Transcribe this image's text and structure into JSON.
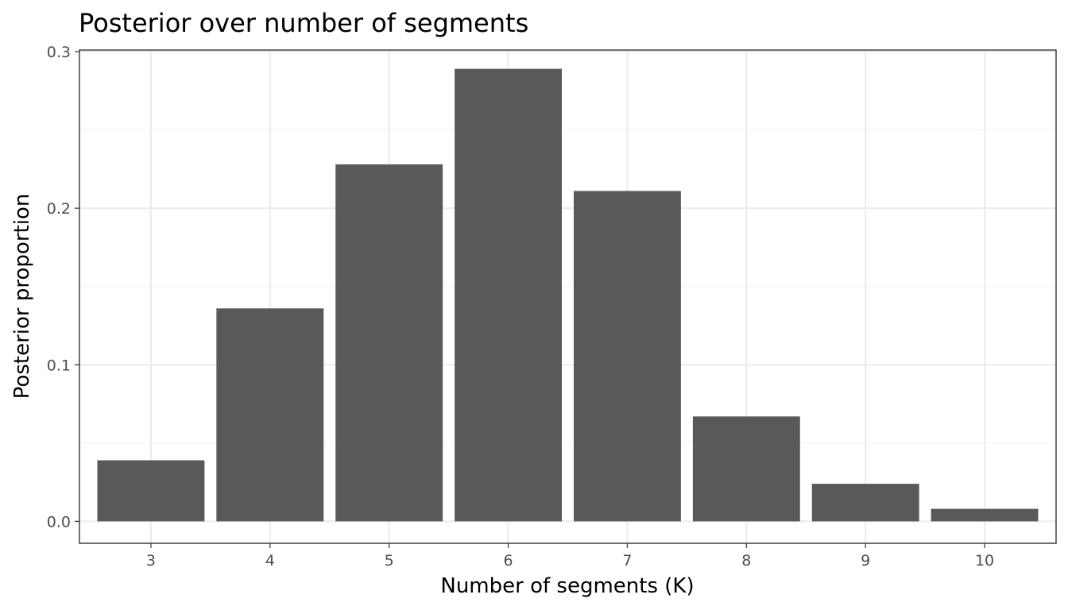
{
  "chart_data": {
    "type": "bar",
    "title": "Posterior over number of segments",
    "xlabel": "Number of segments (K)",
    "ylabel": "Posterior proportion",
    "categories": [
      "3",
      "4",
      "5",
      "6",
      "7",
      "8",
      "9",
      "10"
    ],
    "values": [
      0.039,
      0.136,
      0.228,
      0.289,
      0.211,
      0.067,
      0.024,
      0.008
    ],
    "ylim": [
      -0.014,
      0.301
    ],
    "yticks": [
      0.0,
      0.1,
      0.2,
      0.3
    ],
    "ytick_labels": [
      "0.0",
      "0.1",
      "0.2",
      "0.3"
    ],
    "grid": true,
    "legend": "none",
    "bar_color": "#595959"
  }
}
